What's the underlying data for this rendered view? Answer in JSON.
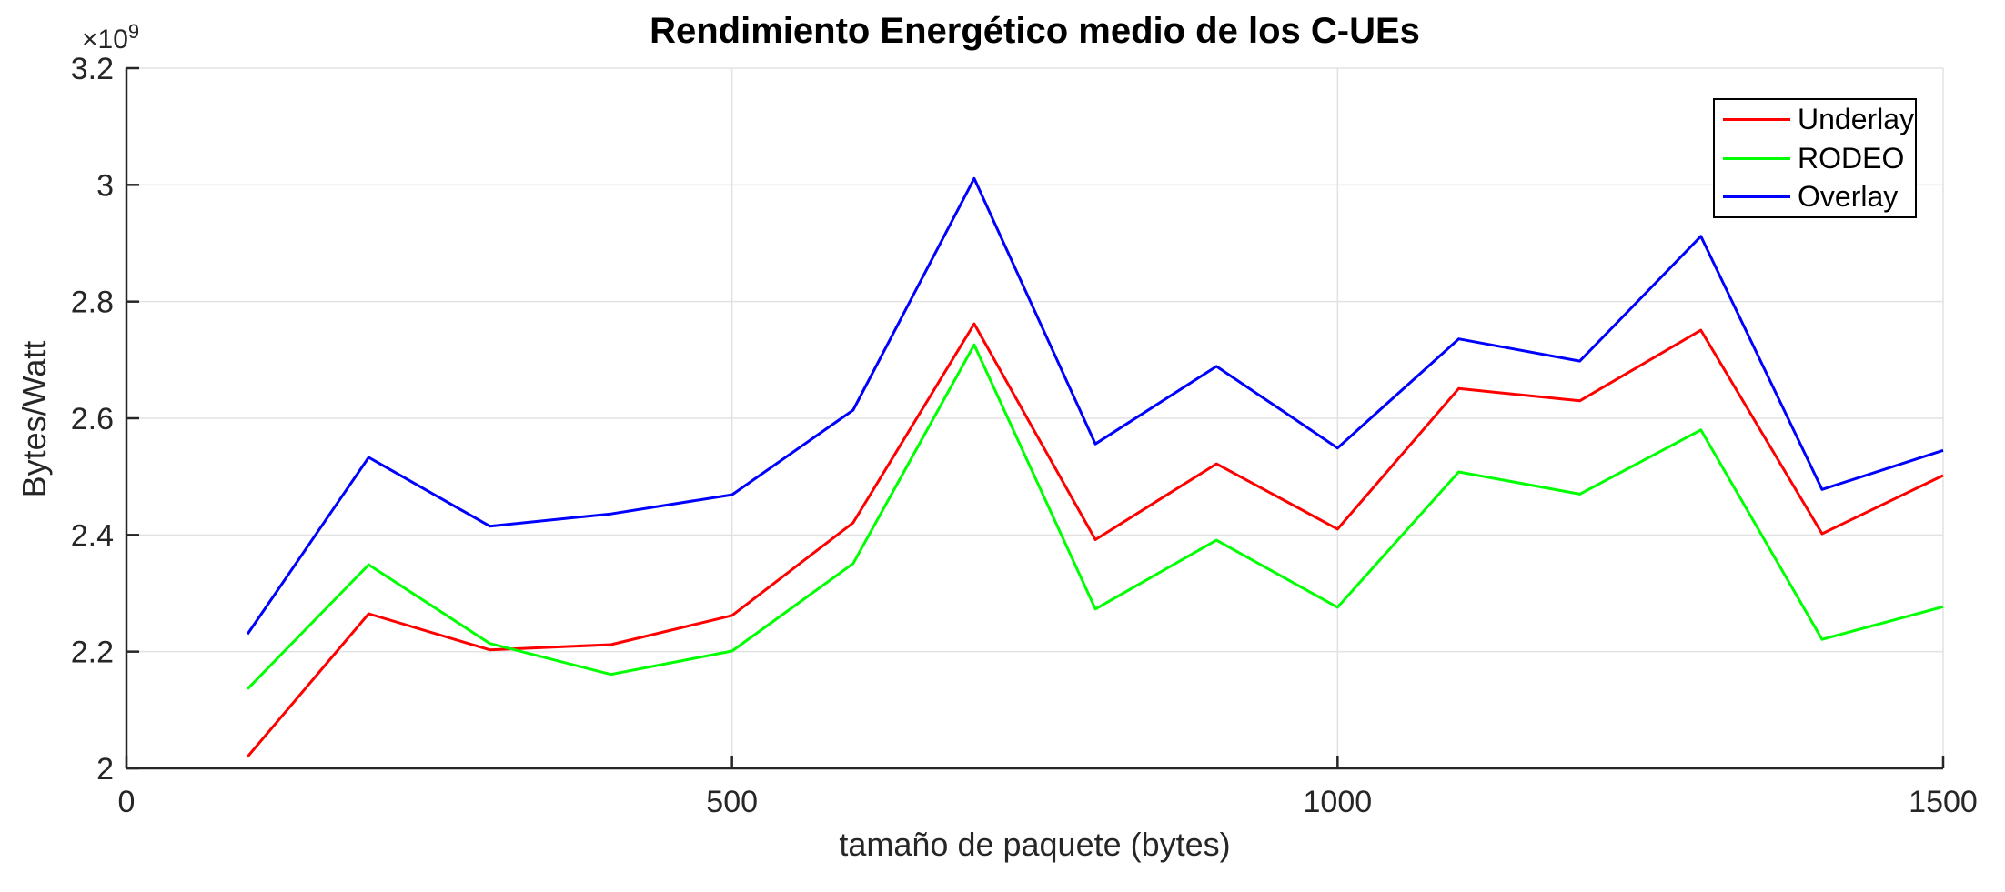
{
  "figure": {
    "title": "Rendimiento Energético medio de los C-UEs",
    "x_axis_label": "tamaño de paquete (bytes)",
    "y_axis_label": "Bytes/Watt",
    "y_exponent_base": "×10",
    "y_exponent_power": "9"
  },
  "chart_data": {
    "type": "line",
    "title": "Rendimiento Energético medio de los C-UEs",
    "xlabel": "tamaño de paquete (bytes)",
    "ylabel": "Bytes/Watt",
    "y_unit_multiplier": 1000000000,
    "x": [
      100,
      200,
      300,
      400,
      500,
      600,
      700,
      800,
      900,
      1000,
      1100,
      1200,
      1300,
      1400,
      1500
    ],
    "series": [
      {
        "name": "Underlay",
        "color": "#ff0000",
        "values": [
          2.02,
          2.265,
          2.203,
          2.212,
          2.262,
          2.421,
          2.762,
          2.392,
          2.522,
          2.41,
          2.651,
          2.63,
          2.751,
          2.402,
          2.502
        ]
      },
      {
        "name": "RODEO",
        "color": "#00ff00",
        "values": [
          2.136,
          2.349,
          2.214,
          2.161,
          2.201,
          2.351,
          2.726,
          2.273,
          2.391,
          2.276,
          2.508,
          2.47,
          2.58,
          2.221,
          2.277
        ]
      },
      {
        "name": "Overlay",
        "color": "#0000ff",
        "values": [
          2.23,
          2.533,
          2.415,
          2.436,
          2.469,
          2.614,
          3.011,
          2.556,
          2.689,
          2.549,
          2.736,
          2.698,
          2.912,
          2.478,
          2.545
        ]
      }
    ],
    "xlim": [
      0,
      1500
    ],
    "ylim": [
      2.0,
      3.2
    ],
    "xticks": [
      0,
      500,
      1000,
      1500
    ],
    "xtick_labels": [
      "0",
      "500",
      "1000",
      "1500"
    ],
    "yticks": [
      2.0,
      2.2,
      2.4,
      2.6,
      2.8,
      3.0,
      3.2
    ],
    "ytick_labels": [
      "2",
      "2.2",
      "2.4",
      "2.6",
      "2.8",
      "3",
      "3.2"
    ],
    "grid": true,
    "legend_position": "top-right"
  },
  "legend": {
    "items": [
      {
        "label": "Underlay",
        "color": "#ff0000"
      },
      {
        "label": "RODEO",
        "color": "#00ff00"
      },
      {
        "label": "Overlay",
        "color": "#0000ff"
      }
    ]
  },
  "colors": {
    "background": "#ffffff",
    "axis": "#262626",
    "grid": "#e2e2e2",
    "tick_text": "#262626",
    "title_text": "#000000",
    "legend_border": "#000000"
  }
}
